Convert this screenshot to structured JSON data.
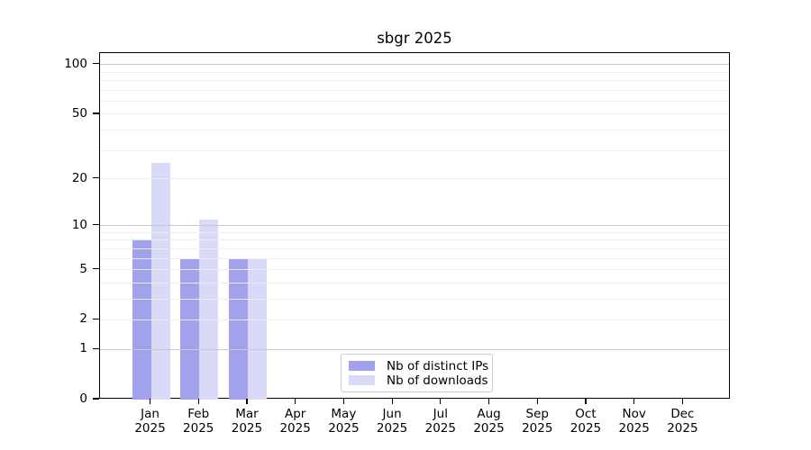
{
  "chart_data": {
    "type": "bar",
    "title": "sbgr 2025",
    "categories": [
      "Jan",
      "Feb",
      "Mar",
      "Apr",
      "May",
      "Jun",
      "Jul",
      "Aug",
      "Sep",
      "Oct",
      "Nov",
      "Dec"
    ],
    "year_label": "2025",
    "series": [
      {
        "name": "Nb of distinct IPs",
        "color": "#a2a2ec",
        "values": [
          8,
          6,
          6,
          0,
          0,
          0,
          0,
          0,
          0,
          0,
          0,
          0
        ]
      },
      {
        "name": "Nb of downloads",
        "color": "#d9d9f8",
        "values": [
          25,
          11,
          6,
          0,
          0,
          0,
          0,
          0,
          0,
          0,
          0,
          0
        ]
      }
    ],
    "yticks": [
      0,
      1,
      2,
      5,
      10,
      20,
      50,
      100
    ],
    "yscale": "log1p",
    "ylim": [
      0,
      117
    ],
    "xlabel": "",
    "ylabel": "",
    "grid": "minor-and-major, drawn above bars",
    "legend_position": "lower center"
  }
}
